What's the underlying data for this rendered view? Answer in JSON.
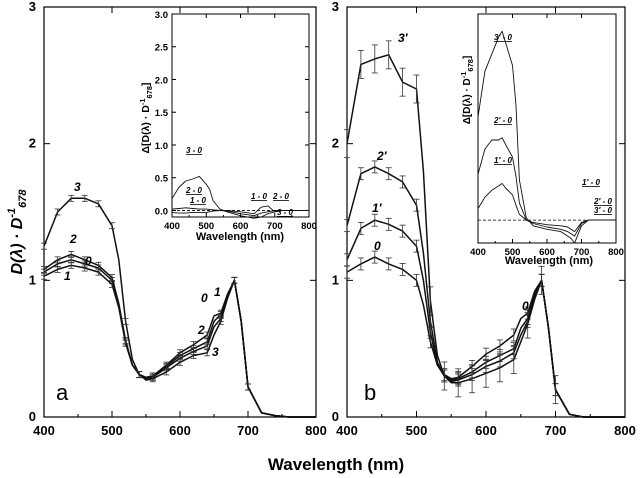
{
  "figure": {
    "shared_xlabel": "Wavelength (nm)",
    "ylabel_main": "D(λ) · D",
    "ylabel_sup": "-1",
    "ylabel_sub": "678"
  },
  "chart_data": [
    {
      "type": "line",
      "panel": "a",
      "xlabel": "Wavelength (nm)",
      "xlim": [
        400,
        800
      ],
      "ylim": [
        0,
        3
      ],
      "xticks": [
        "400",
        "500",
        "600",
        "700",
        "800"
      ],
      "yticks": [
        "0",
        "1",
        "2",
        "3"
      ],
      "series": [
        {
          "name": "0",
          "x": [
            400,
            420,
            440,
            460,
            480,
            500,
            510,
            520,
            530,
            540,
            550,
            560,
            580,
            600,
            620,
            640,
            650,
            660,
            670,
            680,
            690,
            700,
            720,
            740,
            760,
            780,
            800
          ],
          "y": [
            1.06,
            1.12,
            1.15,
            1.12,
            1.09,
            1.0,
            0.82,
            0.55,
            0.38,
            0.31,
            0.29,
            0.3,
            0.38,
            0.47,
            0.53,
            0.6,
            0.74,
            0.76,
            0.9,
            1.0,
            0.7,
            0.22,
            0.03,
            0.01,
            0.0,
            0.0,
            0.0
          ]
        },
        {
          "name": "1",
          "x": [
            400,
            420,
            440,
            460,
            480,
            500,
            510,
            520,
            530,
            540,
            550,
            560,
            580,
            600,
            620,
            640,
            650,
            660,
            670,
            680,
            690,
            700,
            720,
            740,
            760,
            780,
            800
          ],
          "y": [
            1.03,
            1.08,
            1.11,
            1.09,
            1.06,
            0.97,
            0.8,
            0.54,
            0.38,
            0.31,
            0.29,
            0.3,
            0.37,
            0.45,
            0.5,
            0.55,
            0.7,
            0.75,
            0.89,
            1.0,
            0.7,
            0.22,
            0.03,
            0.01,
            0.0,
            0.0,
            0.0
          ]
        },
        {
          "name": "2",
          "x": [
            400,
            420,
            440,
            460,
            480,
            500,
            510,
            520,
            530,
            540,
            550,
            560,
            580,
            600,
            620,
            640,
            650,
            660,
            670,
            680,
            690,
            700,
            720,
            740,
            760,
            780,
            800
          ],
          "y": [
            1.08,
            1.15,
            1.19,
            1.15,
            1.11,
            1.02,
            0.83,
            0.56,
            0.38,
            0.31,
            0.28,
            0.29,
            0.36,
            0.43,
            0.48,
            0.52,
            0.66,
            0.72,
            0.88,
            1.0,
            0.7,
            0.22,
            0.03,
            0.01,
            0.0,
            0.0,
            0.0
          ]
        },
        {
          "name": "3",
          "x": [
            400,
            420,
            440,
            460,
            480,
            500,
            510,
            520,
            530,
            540,
            550,
            560,
            580,
            600,
            620,
            640,
            650,
            660,
            670,
            680,
            690,
            700,
            720,
            740,
            760,
            780,
            800
          ],
          "y": [
            1.25,
            1.5,
            1.6,
            1.6,
            1.56,
            1.4,
            1.15,
            0.7,
            0.42,
            0.31,
            0.27,
            0.28,
            0.33,
            0.4,
            0.45,
            0.47,
            0.6,
            0.7,
            0.87,
            1.0,
            0.7,
            0.22,
            0.03,
            0.01,
            0.0,
            0.0,
            0.0
          ]
        }
      ],
      "curve_labels": [
        "3",
        "2",
        "0",
        "1",
        "0",
        "1",
        "2",
        "3"
      ],
      "panel_label": "a",
      "inset": {
        "type": "line",
        "ylabel_main": "Δ[D(λ) · D",
        "ylabel_sup": "-1",
        "ylabel_sub": "678",
        "ylabel_close": "]",
        "xlabel": "Wavelength (nm)",
        "xlim": [
          400,
          800
        ],
        "ylim": [
          -0.1,
          3
        ],
        "xticks": [
          "400",
          "500",
          "600",
          "700",
          "800"
        ],
        "yticks": [
          "0.0",
          "0.5",
          "1.0",
          "1.5",
          "2.0",
          "2.5",
          "3.0"
        ],
        "series": [
          {
            "name": "3 - 0",
            "x": [
              400,
              420,
              440,
              460,
              480,
              500,
              510,
              520,
              540,
              560,
              600,
              640,
              660,
              680,
              700,
              720,
              740,
              760,
              800
            ],
            "y": [
              0.18,
              0.35,
              0.45,
              0.48,
              0.52,
              0.4,
              0.32,
              0.15,
              0.02,
              -0.02,
              -0.08,
              -0.12,
              -0.1,
              -0.05,
              -0.02,
              0.0,
              0.0,
              0.0,
              0.0
            ]
          },
          {
            "name": "2 - 0",
            "x": [
              400,
              420,
              440,
              460,
              480,
              500,
              520,
              540,
              560,
              600,
              640,
              660,
              680,
              700,
              720,
              740,
              760,
              800
            ],
            "y": [
              0.02,
              0.03,
              0.04,
              0.03,
              0.02,
              0.02,
              0.01,
              0.0,
              -0.01,
              -0.05,
              -0.08,
              -0.04,
              -0.02,
              0.0,
              0.0,
              0.0,
              0.0,
              0.0
            ]
          },
          {
            "name": "1 - 0",
            "x": [
              400,
              420,
              440,
              460,
              480,
              500,
              520,
              540,
              560,
              600,
              640,
              660,
              680,
              700,
              720,
              740,
              760,
              800
            ],
            "y": [
              -0.03,
              -0.04,
              -0.04,
              -0.03,
              -0.03,
              -0.03,
              -0.01,
              0.0,
              0.0,
              -0.02,
              -0.05,
              0.05,
              0.07,
              -0.02,
              0.0,
              0.0,
              0.0,
              0.0
            ]
          }
        ],
        "curve_labels": [
          "3 - 0",
          "2 - 0",
          "1 - 0",
          "1 - 0",
          "2 - 0",
          "3 - 0"
        ]
      }
    },
    {
      "type": "line",
      "panel": "b",
      "xlabel": "Wavelength (nm)",
      "xlim": [
        400,
        800
      ],
      "ylim": [
        0,
        3
      ],
      "xticks": [
        "400",
        "500",
        "600",
        "700",
        "800"
      ],
      "yticks": [
        "0",
        "1",
        "2",
        "3"
      ],
      "series": [
        {
          "name": "0",
          "x": [
            400,
            420,
            440,
            460,
            480,
            500,
            510,
            520,
            530,
            540,
            550,
            560,
            580,
            600,
            620,
            640,
            650,
            660,
            670,
            680,
            690,
            700,
            720,
            740,
            760,
            780,
            800
          ],
          "y": [
            1.06,
            1.12,
            1.17,
            1.12,
            1.08,
            1.0,
            0.82,
            0.55,
            0.38,
            0.31,
            0.28,
            0.29,
            0.37,
            0.46,
            0.52,
            0.6,
            0.72,
            0.76,
            0.92,
            1.0,
            0.65,
            0.2,
            0.02,
            0.0,
            0.0,
            0.0,
            0.0
          ]
        },
        {
          "name": "1'",
          "x": [
            400,
            420,
            440,
            460,
            480,
            500,
            510,
            520,
            530,
            540,
            550,
            560,
            580,
            600,
            620,
            640,
            650,
            660,
            670,
            680,
            690,
            700,
            720,
            740,
            760,
            780,
            800
          ],
          "y": [
            1.15,
            1.38,
            1.44,
            1.41,
            1.36,
            1.25,
            1.0,
            0.62,
            0.38,
            0.3,
            0.27,
            0.28,
            0.33,
            0.4,
            0.45,
            0.5,
            0.65,
            0.72,
            0.9,
            1.0,
            0.65,
            0.2,
            0.02,
            0.0,
            0.0,
            0.0,
            0.0
          ]
        },
        {
          "name": "2'",
          "x": [
            400,
            420,
            440,
            460,
            480,
            500,
            510,
            520,
            530,
            540,
            550,
            560,
            580,
            600,
            620,
            640,
            650,
            660,
            670,
            680,
            690,
            700,
            720,
            740,
            760,
            780,
            800
          ],
          "y": [
            1.4,
            1.78,
            1.83,
            1.78,
            1.72,
            1.55,
            1.2,
            0.7,
            0.4,
            0.3,
            0.26,
            0.27,
            0.31,
            0.37,
            0.41,
            0.47,
            0.6,
            0.7,
            0.88,
            1.0,
            0.65,
            0.2,
            0.02,
            0.0,
            0.0,
            0.0,
            0.0
          ]
        },
        {
          "name": "3'",
          "x": [
            400,
            420,
            440,
            460,
            480,
            500,
            510,
            520,
            530,
            540,
            550,
            560,
            580,
            600,
            620,
            640,
            650,
            660,
            670,
            680,
            690,
            700,
            720,
            740,
            760,
            780,
            800
          ],
          "y": [
            2.0,
            2.58,
            2.62,
            2.65,
            2.45,
            2.4,
            1.8,
            0.85,
            0.45,
            0.3,
            0.25,
            0.25,
            0.28,
            0.32,
            0.36,
            0.42,
            0.55,
            0.68,
            0.86,
            1.0,
            0.65,
            0.2,
            0.02,
            0.0,
            0.0,
            0.0,
            0.0
          ]
        }
      ],
      "curve_labels": [
        "3′",
        "2′",
        "1′",
        "0",
        "0"
      ],
      "panel_label": "b",
      "inset": {
        "type": "line",
        "ylabel_main": "Δ[D(λ) · D",
        "ylabel_sup": "-1",
        "ylabel_sub": "678",
        "ylabel_close": "]",
        "xlabel": "Wavelength (nm)",
        "xlim": [
          400,
          800
        ],
        "ylim": [
          -0.2,
          1.8
        ],
        "xticks": [
          "400",
          "500",
          "600",
          "700",
          "800"
        ],
        "yticks": [],
        "series": [
          {
            "name": "3' - 0",
            "x": [
              400,
              420,
              440,
              460,
              470,
              480,
              500,
              510,
              520,
              540,
              560,
              600,
              640,
              660,
              670,
              680,
              700,
              720,
              740,
              760,
              800
            ],
            "y": [
              0.9,
              1.3,
              1.45,
              1.6,
              1.65,
              1.55,
              1.35,
              1.0,
              0.35,
              0.02,
              -0.05,
              -0.08,
              -0.1,
              -0.14,
              -0.16,
              -0.2,
              -0.05,
              0.0,
              0.0,
              0.0,
              0.0
            ]
          },
          {
            "name": "2' - 0",
            "x": [
              400,
              420,
              440,
              460,
              470,
              480,
              500,
              510,
              520,
              540,
              560,
              600,
              640,
              660,
              670,
              680,
              700,
              720,
              740,
              760,
              800
            ],
            "y": [
              0.4,
              0.62,
              0.7,
              0.7,
              0.72,
              0.66,
              0.55,
              0.38,
              0.15,
              0.0,
              -0.03,
              -0.06,
              -0.08,
              -0.1,
              -0.12,
              -0.14,
              -0.03,
              0.0,
              0.0,
              0.0,
              0.0
            ]
          },
          {
            "name": "1' - 0",
            "x": [
              400,
              420,
              440,
              460,
              470,
              480,
              500,
              510,
              520,
              540,
              560,
              600,
              640,
              660,
              670,
              680,
              700,
              720,
              740,
              760,
              800
            ],
            "y": [
              0.1,
              0.2,
              0.26,
              0.3,
              0.32,
              0.28,
              0.22,
              0.13,
              0.05,
              0.0,
              -0.02,
              -0.04,
              -0.05,
              -0.06,
              -0.08,
              -0.1,
              -0.02,
              0.0,
              0.0,
              0.0,
              0.0
            ]
          }
        ],
        "curve_labels": [
          "3′ - 0",
          "2′ - 0",
          "1′ - 0",
          "1′ - 0",
          "2′ - 0",
          "3′ - 0"
        ]
      }
    }
  ]
}
